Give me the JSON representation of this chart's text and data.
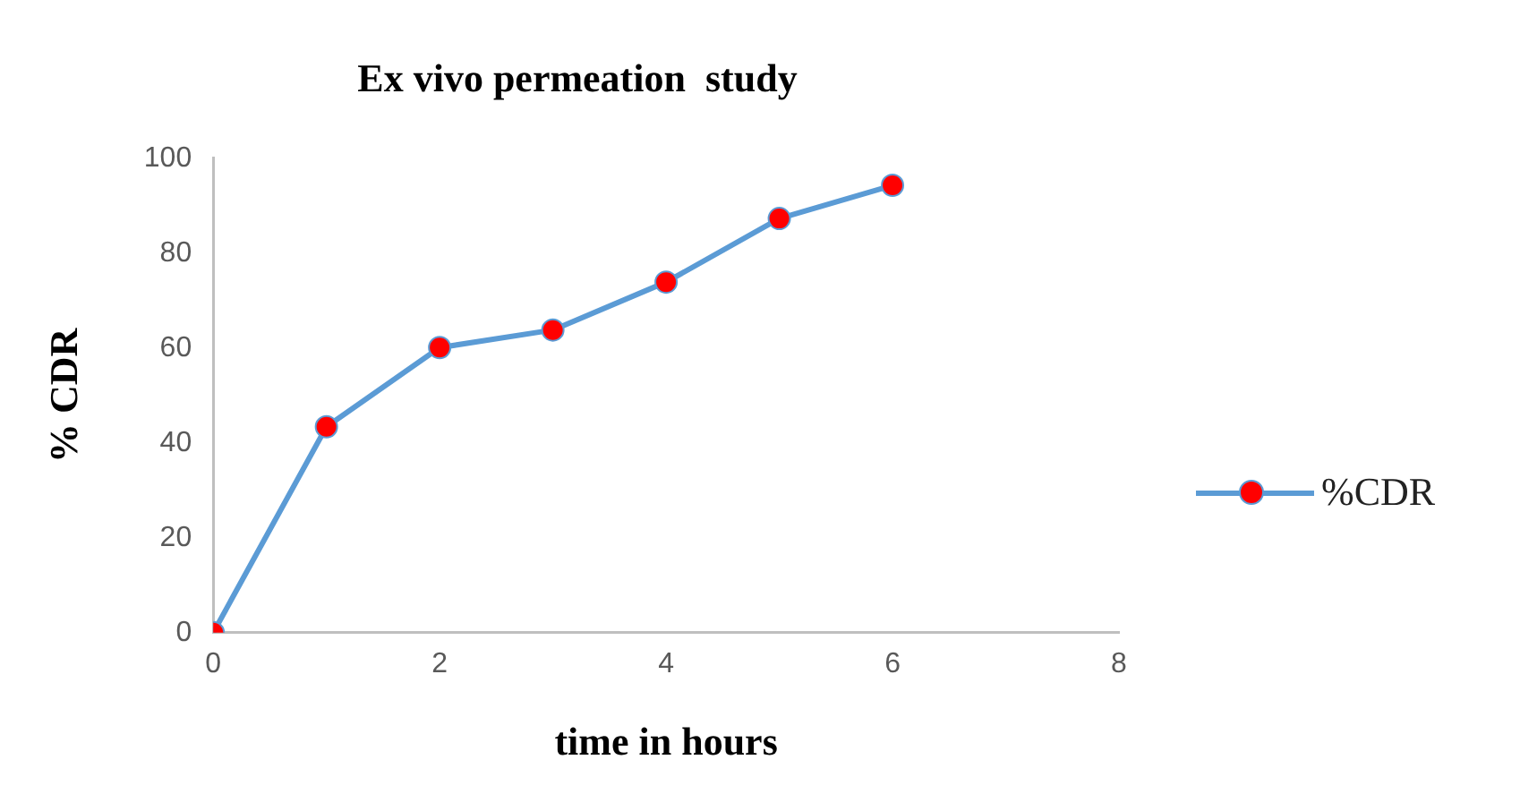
{
  "chart_data": {
    "type": "line",
    "title": "Ex vivo permeation  study",
    "xlabel": "time in hours",
    "ylabel": "% CDR",
    "x": [
      0,
      1,
      2,
      3,
      4,
      5,
      6
    ],
    "series": [
      {
        "name": "%CDR",
        "color": "#5b9bd5",
        "colors": [
          "#ff0000",
          "#ff0000",
          "#ff0000",
          "#ff0000",
          "#ff0000",
          "#ff0000",
          "#ff0000"
        ],
        "values": [
          0,
          43.4,
          60.1,
          63.8,
          73.9,
          87.3,
          94.3
        ]
      }
    ],
    "xlim": [
      0,
      8
    ],
    "xticks": [
      0,
      2,
      4,
      6,
      8
    ],
    "ylim": [
      0,
      100
    ],
    "yticks": [
      0,
      20,
      40,
      60,
      80,
      100
    ],
    "grid": false,
    "legend": "right",
    "marker": "circle",
    "line_style": "solid"
  }
}
